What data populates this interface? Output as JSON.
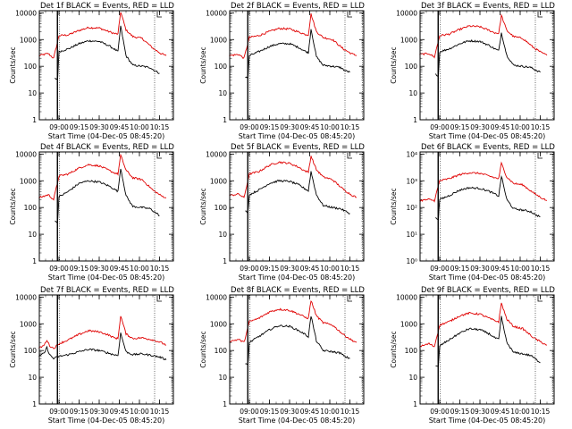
{
  "colors": {
    "events": "#000000",
    "lld": "#e00000",
    "axes": "#000000"
  },
  "chart_data": [
    {
      "type": "line",
      "title": "Det 1f BLACK = Events, RED = LLD",
      "xlabel": "Start Time (04-Dec-05 08:45:20)",
      "ylabel": "Counts/sec",
      "y_scale": "log",
      "ylim": [
        1,
        12000
      ],
      "y_tick_labels": [
        "1",
        "10",
        "100",
        "1000",
        "10000"
      ],
      "x_tick_labels": [
        "09:00",
        "09:15",
        "09:30",
        "09:45",
        "10:00",
        "10:15"
      ],
      "grid": false,
      "series": [
        {
          "color": "#e00000",
          "x": [
            "08:45",
            "08:52",
            "08:56",
            "09:00",
            "09:07",
            "09:15",
            "09:22",
            "09:30",
            "09:37",
            "09:41",
            "09:44",
            "09:46",
            "09:50",
            "09:55",
            "10:02",
            "10:10",
            "10:16",
            "10:20"
          ],
          "y": [
            250,
            300,
            200,
            1400,
            1500,
            2200,
            2800,
            2700,
            2000,
            1700,
            1600,
            11000,
            2300,
            1300,
            1100,
            480,
            300,
            250
          ]
        },
        {
          "color": "#000000",
          "x": [
            "08:57",
            "08:59",
            "09:00",
            "09:07",
            "09:15",
            "09:22",
            "09:30",
            "09:37",
            "09:41",
            "09:44",
            "09:46",
            "09:50",
            "09:55",
            "10:02",
            "10:08",
            "10:11",
            "10:15"
          ],
          "y": [
            35,
            33,
            350,
            450,
            700,
            900,
            850,
            600,
            450,
            350,
            3200,
            250,
            110,
            100,
            90,
            70,
            55
          ]
        }
      ]
    },
    {
      "type": "line",
      "title": "Det 2f BLACK = Events, RED = LLD",
      "xlabel": "Start Time (04-Dec-05 08:45:20)",
      "ylabel": "Counts/sec",
      "y_scale": "log",
      "ylim": [
        1,
        12000
      ],
      "y_tick_labels": [
        "1",
        "10",
        "100",
        "1000",
        "10000"
      ],
      "x_tick_labels": [
        "09:00",
        "09:15",
        "09:30",
        "09:45",
        "10:00",
        "10:15"
      ],
      "grid": false,
      "series": [
        {
          "color": "#e00000",
          "x": [
            "08:45",
            "08:52",
            "08:56",
            "09:00",
            "09:07",
            "09:15",
            "09:22",
            "09:30",
            "09:37",
            "09:41",
            "09:44",
            "09:46",
            "09:50",
            "09:55",
            "10:02",
            "10:10",
            "10:16",
            "10:20"
          ],
          "y": [
            250,
            280,
            200,
            1200,
            1400,
            2000,
            2600,
            2500,
            1900,
            1600,
            1500,
            9000,
            2000,
            1200,
            1000,
            450,
            300,
            250
          ]
        },
        {
          "color": "#000000",
          "x": [
            "08:57",
            "08:59",
            "09:00",
            "09:07",
            "09:15",
            "09:22",
            "09:30",
            "09:37",
            "09:41",
            "09:44",
            "09:46",
            "09:50",
            "09:55",
            "10:02",
            "10:08",
            "10:11",
            "10:15"
          ],
          "y": [
            40,
            38,
            250,
            350,
            550,
            700,
            700,
            500,
            380,
            320,
            2500,
            230,
            110,
            100,
            90,
            70,
            60
          ]
        }
      ]
    },
    {
      "type": "line",
      "title": "Det 3f BLACK = Events, RED = LLD",
      "xlabel": "Start Time (04-Dec-05 08:45:20)",
      "ylabel": "Counts/sec",
      "y_scale": "log",
      "ylim": [
        1,
        12000
      ],
      "y_tick_labels": [
        "1",
        "10",
        "100",
        "1000",
        "10000"
      ],
      "x_tick_labels": [
        "09:00",
        "09:15",
        "09:30",
        "09:45",
        "10:00",
        "10:15"
      ],
      "grid": false,
      "series": [
        {
          "color": "#e00000",
          "x": [
            "08:45",
            "08:52",
            "08:56",
            "09:00",
            "09:07",
            "09:15",
            "09:22",
            "09:30",
            "09:37",
            "09:41",
            "09:44",
            "09:46",
            "09:50",
            "09:55",
            "10:02",
            "10:10",
            "10:16",
            "10:20"
          ],
          "y": [
            280,
            300,
            220,
            1400,
            1600,
            2400,
            3200,
            3000,
            2200,
            1800,
            1700,
            8000,
            2200,
            1300,
            1100,
            500,
            320,
            260
          ]
        },
        {
          "color": "#000000",
          "x": [
            "08:57",
            "08:59",
            "09:00",
            "09:07",
            "09:15",
            "09:22",
            "09:30",
            "09:37",
            "09:41",
            "09:44",
            "09:46",
            "09:50",
            "09:55",
            "10:02",
            "10:08",
            "10:11",
            "10:15"
          ],
          "y": [
            50,
            45,
            350,
            450,
            700,
            900,
            850,
            600,
            450,
            380,
            1800,
            260,
            110,
            100,
            90,
            75,
            60
          ]
        }
      ]
    },
    {
      "type": "line",
      "title": "Det 4f BLACK = Events, RED = LLD",
      "xlabel": "Start Time (04-Dec-05 08:45:20)",
      "ylabel": "Counts/sec",
      "y_scale": "log",
      "ylim": [
        1,
        12000
      ],
      "y_tick_labels": [
        "1",
        "10",
        "100",
        "1000",
        "10000"
      ],
      "x_tick_labels": [
        "09:00",
        "09:15",
        "09:30",
        "09:45",
        "10:00",
        "10:15"
      ],
      "grid": false,
      "series": [
        {
          "color": "#e00000",
          "x": [
            "08:45",
            "08:52",
            "08:56",
            "09:00",
            "09:07",
            "09:15",
            "09:22",
            "09:30",
            "09:37",
            "09:41",
            "09:44",
            "09:46",
            "09:50",
            "09:55",
            "10:02",
            "10:10",
            "10:16",
            "10:20"
          ],
          "y": [
            230,
            300,
            200,
            1500,
            1800,
            3000,
            4000,
            3600,
            2500,
            2000,
            1800,
            9000,
            2500,
            1300,
            1100,
            450,
            280,
            230
          ]
        },
        {
          "color": "#000000",
          "x": [
            "08:57",
            "08:59",
            "09:00",
            "09:07",
            "09:15",
            "09:22",
            "09:30",
            "09:37",
            "09:41",
            "09:44",
            "09:46",
            "09:50",
            "09:55",
            "10:02",
            "10:08",
            "10:11",
            "10:15"
          ],
          "y": [
            30,
            30,
            250,
            400,
            800,
            1000,
            900,
            650,
            500,
            400,
            3000,
            280,
            110,
            100,
            90,
            70,
            50
          ]
        }
      ]
    },
    {
      "type": "line",
      "title": "Det 5f BLACK = Events, RED = LLD",
      "xlabel": "Start Time (04-Dec-05 08:45:20)",
      "ylabel": "Counts/sec",
      "y_scale": "log",
      "ylim": [
        1,
        12000
      ],
      "y_tick_labels": [
        "1",
        "10",
        "100",
        "1000",
        "10000"
      ],
      "x_tick_labels": [
        "09:00",
        "09:15",
        "09:30",
        "09:45",
        "10:00",
        "10:15"
      ],
      "grid": false,
      "series": [
        {
          "color": "#e00000",
          "x": [
            "08:45",
            "08:52",
            "08:56",
            "09:00",
            "09:07",
            "09:15",
            "09:22",
            "09:30",
            "09:37",
            "09:41",
            "09:44",
            "09:46",
            "09:50",
            "09:55",
            "10:02",
            "10:10",
            "10:16",
            "10:20"
          ],
          "y": [
            280,
            320,
            230,
            1800,
            2200,
            3800,
            5000,
            4500,
            3200,
            2400,
            2100,
            8500,
            2600,
            1400,
            1100,
            480,
            300,
            240
          ]
        },
        {
          "color": "#000000",
          "x": [
            "08:57",
            "08:59",
            "09:00",
            "09:07",
            "09:15",
            "09:22",
            "09:30",
            "09:37",
            "09:41",
            "09:44",
            "09:46",
            "09:50",
            "09:55",
            "10:02",
            "10:08",
            "10:11",
            "10:15"
          ],
          "y": [
            70,
            70,
            300,
            450,
            800,
            1000,
            950,
            700,
            520,
            420,
            2200,
            300,
            120,
            100,
            90,
            75,
            60
          ]
        }
      ]
    },
    {
      "type": "line",
      "title": "Det 6f BLACK = Events, RED = LLD",
      "xlabel": "Start Time (04-Dec-05 08:45:20)",
      "ylabel": "Counts/sec",
      "y_scale": "log",
      "ylim": [
        1,
        12000
      ],
      "y_tick_labels": [
        "10⁰",
        "10¹",
        "10²",
        "10³",
        "10⁴"
      ],
      "x_tick_labels": [
        "09:00",
        "09:15",
        "09:30",
        "09:45",
        "10:00",
        "10:15"
      ],
      "grid": false,
      "series": [
        {
          "color": "#e00000",
          "x": [
            "08:45",
            "08:52",
            "08:56",
            "09:00",
            "09:07",
            "09:15",
            "09:22",
            "09:30",
            "09:37",
            "09:41",
            "09:44",
            "09:46",
            "09:50",
            "09:55",
            "10:02",
            "10:10",
            "10:16",
            "10:20"
          ],
          "y": [
            180,
            200,
            180,
            1000,
            1200,
            1700,
            2000,
            1900,
            1500,
            1300,
            1200,
            4500,
            1400,
            800,
            700,
            350,
            230,
            180
          ]
        },
        {
          "color": "#000000",
          "x": [
            "08:57",
            "08:59",
            "09:00",
            "09:07",
            "09:15",
            "09:22",
            "09:30",
            "09:37",
            "09:41",
            "09:44",
            "09:46",
            "09:50",
            "09:55",
            "10:02",
            "10:08",
            "10:11",
            "10:15"
          ],
          "y": [
            40,
            38,
            200,
            280,
            450,
            550,
            520,
            400,
            320,
            270,
            1500,
            200,
            90,
            80,
            70,
            55,
            45
          ]
        }
      ]
    },
    {
      "type": "line",
      "title": "Det 7f BLACK = Events, RED = LLD",
      "xlabel": "Start Time (04-Dec-05 08:45:20)",
      "ylabel": "Counts/sec",
      "y_scale": "log",
      "ylim": [
        1,
        12000
      ],
      "y_tick_labels": [
        "1",
        "10",
        "100",
        "1000",
        "10000"
      ],
      "x_tick_labels": [
        "09:00",
        "09:15",
        "09:30",
        "09:45",
        "10:00",
        "10:15"
      ],
      "grid": false,
      "series": [
        {
          "color": "#e00000",
          "x": [
            "08:45",
            "08:49",
            "08:51",
            "08:53",
            "08:56",
            "09:00",
            "09:07",
            "09:15",
            "09:22",
            "09:30",
            "09:37",
            "09:41",
            "09:44",
            "09:46",
            "09:50",
            "09:55",
            "10:02",
            "10:10",
            "10:16",
            "10:20"
          ],
          "y": [
            120,
            160,
            250,
            150,
            120,
            180,
            250,
            400,
            550,
            500,
            380,
            300,
            280,
            2000,
            420,
            280,
            300,
            250,
            200,
            160
          ]
        },
        {
          "color": "#000000",
          "x": [
            "08:45",
            "08:49",
            "08:51",
            "08:53",
            "08:56",
            "09:00",
            "09:07",
            "09:15",
            "09:22",
            "09:30",
            "09:37",
            "09:41",
            "09:44",
            "09:46",
            "09:50",
            "09:55",
            "10:02",
            "10:10",
            "10:16",
            "10:20"
          ],
          "y": [
            60,
            80,
            130,
            70,
            50,
            60,
            70,
            90,
            110,
            100,
            80,
            70,
            65,
            450,
            90,
            70,
            75,
            65,
            55,
            45
          ]
        }
      ]
    },
    {
      "type": "line",
      "title": "Det 8f BLACK = Events, RED = LLD",
      "xlabel": "Start Time (04-Dec-05 08:45:20)",
      "ylabel": "Counts/sec",
      "y_scale": "log",
      "ylim": [
        1,
        12000
      ],
      "y_tick_labels": [
        "1",
        "10",
        "100",
        "1000",
        "10000"
      ],
      "x_tick_labels": [
        "09:00",
        "09:15",
        "09:30",
        "09:45",
        "10:00",
        "10:15"
      ],
      "grid": false,
      "series": [
        {
          "color": "#e00000",
          "x": [
            "08:45",
            "08:52",
            "08:56",
            "09:00",
            "09:07",
            "09:15",
            "09:22",
            "09:30",
            "09:37",
            "09:41",
            "09:44",
            "09:46",
            "09:50",
            "09:55",
            "10:02",
            "10:10",
            "10:16",
            "10:20"
          ],
          "y": [
            220,
            260,
            200,
            1200,
            1600,
            2800,
            3500,
            3200,
            2300,
            1800,
            1600,
            7500,
            2000,
            1100,
            900,
            400,
            250,
            200
          ]
        },
        {
          "color": "#000000",
          "x": [
            "08:57",
            "08:59",
            "09:00",
            "09:07",
            "09:15",
            "09:22",
            "09:30",
            "09:37",
            "09:41",
            "09:44",
            "09:46",
            "09:50",
            "09:55",
            "10:02",
            "10:08",
            "10:11",
            "10:15"
          ],
          "y": [
            30,
            30,
            200,
            330,
            600,
            850,
            800,
            550,
            420,
            330,
            2000,
            230,
            100,
            90,
            80,
            60,
            50
          ]
        }
      ]
    },
    {
      "type": "line",
      "title": "Det 9f BLACK = Events, RED = LLD",
      "xlabel": "Start Time (04-Dec-05 08:45:20)",
      "ylabel": "Counts/sec",
      "y_scale": "log",
      "ylim": [
        1,
        12000
      ],
      "y_tick_labels": [
        "1",
        "10",
        "100",
        "1000",
        "10000"
      ],
      "x_tick_labels": [
        "09:00",
        "09:15",
        "09:30",
        "09:45",
        "10:00",
        "10:15"
      ],
      "grid": false,
      "series": [
        {
          "color": "#e00000",
          "x": [
            "08:45",
            "08:52",
            "08:56",
            "09:00",
            "09:07",
            "09:15",
            "09:22",
            "09:30",
            "09:37",
            "09:41",
            "09:44",
            "09:46",
            "09:50",
            "09:55",
            "10:02",
            "10:10",
            "10:16",
            "10:20"
          ],
          "y": [
            140,
            180,
            140,
            900,
            1200,
            2000,
            2500,
            2300,
            1600,
            1300,
            1200,
            6000,
            1500,
            800,
            650,
            300,
            200,
            160
          ]
        },
        {
          "color": "#000000",
          "x": [
            "08:57",
            "08:59",
            "09:00",
            "09:07",
            "09:15",
            "09:22",
            "09:30",
            "09:37",
            "09:41",
            "09:44",
            "09:46",
            "09:50",
            "09:55",
            "10:02",
            "10:08",
            "10:11",
            "10:15"
          ],
          "y": [
            25,
            25,
            150,
            250,
            450,
            650,
            600,
            420,
            300,
            260,
            1800,
            200,
            85,
            75,
            65,
            50,
            35
          ]
        }
      ]
    }
  ]
}
